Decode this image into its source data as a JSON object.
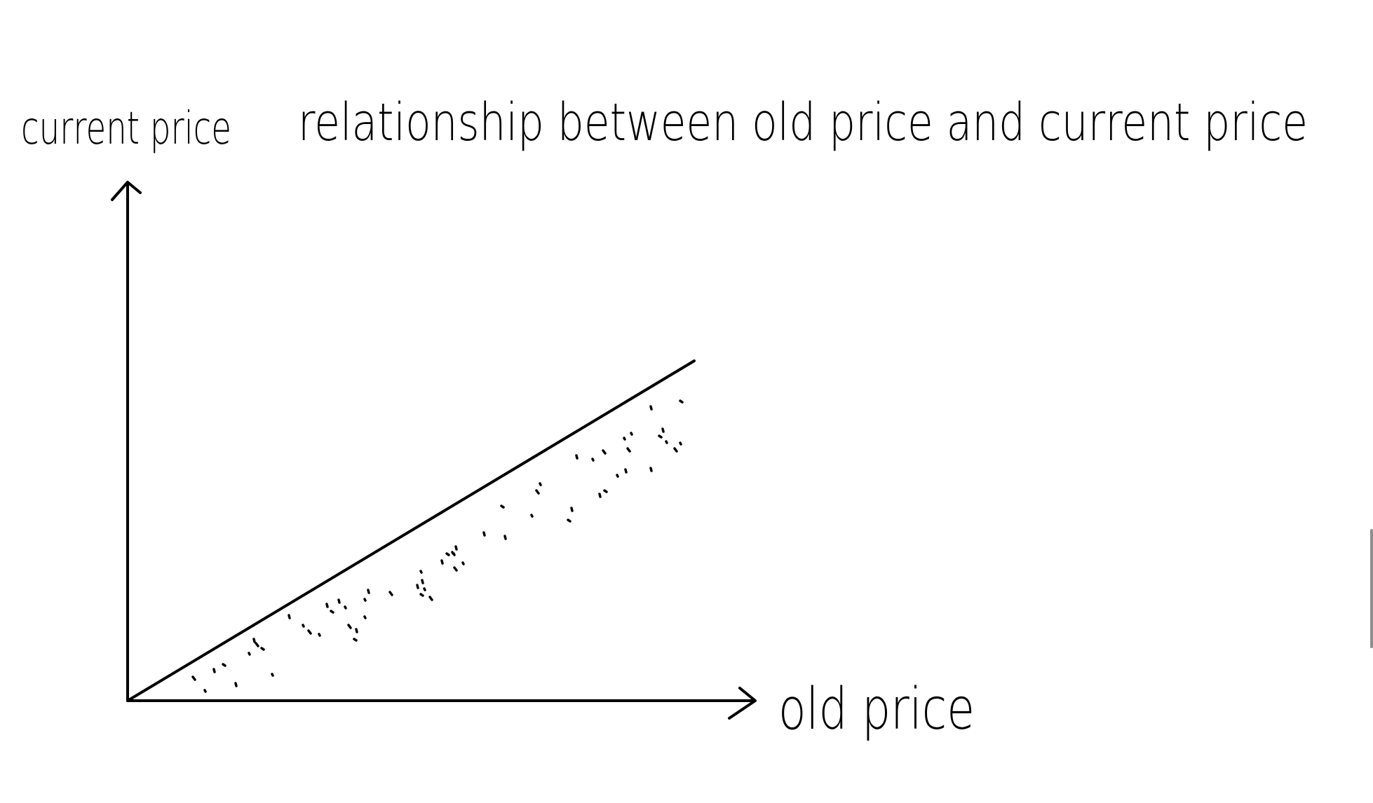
{
  "diagram": {
    "title": "relationship between old price and current price",
    "y_axis_label": "current price",
    "x_axis_label": "old price",
    "ink_color": "#000000",
    "background_color": "#ffffff"
  },
  "chart_data": {
    "type": "scatter",
    "title": "relationship between old price and current price",
    "xlabel": "old price",
    "ylabel": "current price",
    "grid": false,
    "reference_line": "y = x (diagonal through origin)",
    "note_points": "dotted points lie below the diagonal reference line"
  }
}
